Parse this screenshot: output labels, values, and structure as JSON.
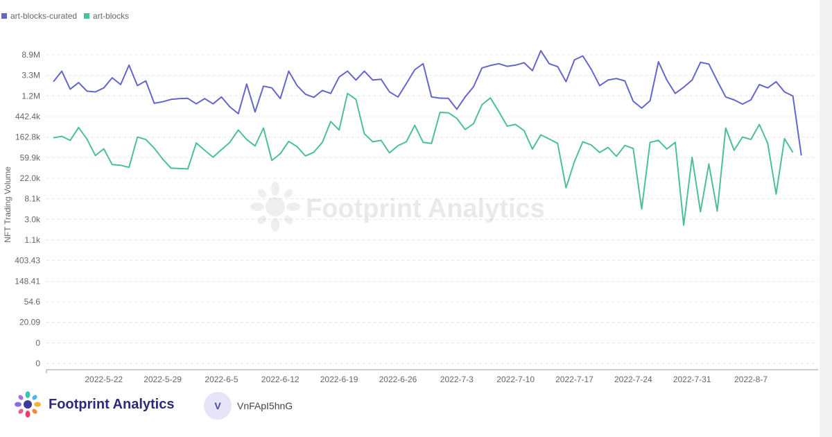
{
  "brand": {
    "name": "Footprint Analytics",
    "watermark": "Footprint Analytics"
  },
  "user": {
    "initial": "V",
    "name": "VnFApI5hnG"
  },
  "colors": {
    "curated": "#6366c9",
    "artblocks": "#4cbf96",
    "grid": "#e5e5e5",
    "axis": "#999999",
    "text": "#666666"
  },
  "chart_data": {
    "type": "line",
    "title": "",
    "xlabel": "",
    "ylabel": "NFT Trading Volume",
    "y_scale": "log",
    "y_ticks": [
      "0",
      "0",
      "20.09",
      "54.6",
      "148.41",
      "403.43",
      "1.1k",
      "3.0k",
      "8.1k",
      "22.0k",
      "59.9k",
      "162.8k",
      "442.4k",
      "1.2M",
      "3.3M",
      "8.9M"
    ],
    "y_tick_values": [
      1,
      2.72,
      20.09,
      54.6,
      148.41,
      403.43,
      1097,
      2981,
      8103,
      22026,
      59874,
      162755,
      442413,
      1202604,
      3269017,
      8886110
    ],
    "x_tick_labels": [
      "2022-5-22",
      "2022-5-29",
      "2022-6-5",
      "2022-6-12",
      "2022-6-19",
      "2022-6-26",
      "2022-7-3",
      "2022-7-10",
      "2022-7-17",
      "2022-7-24",
      "2022-7-31",
      "2022-8-7"
    ],
    "x_range": [
      "2022-5-16",
      "2022-8-15"
    ],
    "legend": "top-left",
    "series": [
      {
        "name": "art-blocks-curated",
        "color": "#6366c9",
        "x": [
          "2022-5-16",
          "2022-5-17",
          "2022-5-18",
          "2022-5-19",
          "2022-5-20",
          "2022-5-21",
          "2022-5-22",
          "2022-5-23",
          "2022-5-24",
          "2022-5-25",
          "2022-5-26",
          "2022-5-27",
          "2022-5-28",
          "2022-5-29",
          "2022-5-30",
          "2022-5-31",
          "2022-6-1",
          "2022-6-2",
          "2022-6-3",
          "2022-6-4",
          "2022-6-5",
          "2022-6-6",
          "2022-6-7",
          "2022-6-8",
          "2022-6-9",
          "2022-6-10",
          "2022-6-11",
          "2022-6-12",
          "2022-6-13",
          "2022-6-14",
          "2022-6-15",
          "2022-6-16",
          "2022-6-17",
          "2022-6-18",
          "2022-6-19",
          "2022-6-20",
          "2022-6-21",
          "2022-6-22",
          "2022-6-23",
          "2022-6-24",
          "2022-6-25",
          "2022-6-26",
          "2022-6-27",
          "2022-6-28",
          "2022-6-29",
          "2022-6-30",
          "2022-7-1",
          "2022-7-2",
          "2022-7-3",
          "2022-7-4",
          "2022-7-5",
          "2022-7-6",
          "2022-7-7",
          "2022-7-8",
          "2022-7-9",
          "2022-7-10",
          "2022-7-11",
          "2022-7-12",
          "2022-7-13",
          "2022-7-14",
          "2022-7-15",
          "2022-7-16",
          "2022-7-17",
          "2022-7-18",
          "2022-7-19",
          "2022-7-20",
          "2022-7-21",
          "2022-7-22",
          "2022-7-23",
          "2022-7-24",
          "2022-7-25",
          "2022-7-26",
          "2022-7-27",
          "2022-7-28",
          "2022-7-29",
          "2022-7-30",
          "2022-7-31",
          "2022-8-1",
          "2022-8-2",
          "2022-8-3",
          "2022-8-4",
          "2022-8-5",
          "2022-8-6",
          "2022-8-7",
          "2022-8-8",
          "2022-8-9",
          "2022-8-10",
          "2022-8-11",
          "2022-8-12",
          "2022-8-13"
        ],
        "values": [
          2200000,
          3800000,
          1500000,
          2100000,
          1350000,
          1300000,
          1600000,
          2700000,
          1900000,
          5200000,
          1800000,
          2300000,
          720000,
          780000,
          880000,
          920000,
          930000,
          700000,
          920000,
          700000,
          1000000,
          600000,
          420000,
          1950000,
          460000,
          1750000,
          1600000,
          920000,
          3800000,
          1800000,
          1150000,
          980000,
          1400000,
          1200000,
          2800000,
          3800000,
          2400000,
          3800000,
          2400000,
          2500000,
          1300000,
          1000000,
          2000000,
          4100000,
          5600000,
          1000000,
          940000,
          930000,
          530000,
          1000000,
          1700000,
          4500000,
          5100000,
          5600000,
          4900000,
          5200000,
          5900000,
          3900000,
          11000000,
          5600000,
          4800000,
          2200000,
          6800000,
          8400000,
          4200000,
          1800000,
          2400000,
          2600000,
          2300000,
          800000,
          560000,
          820000,
          6200000,
          2400000,
          1200000,
          1650000,
          2400000,
          6000000,
          5500000,
          2300000,
          1000000,
          860000,
          690000,
          860000,
          1900000,
          1600000,
          2200000,
          1300000,
          1050000,
          48000
        ]
      },
      {
        "name": "art-blocks",
        "color": "#4cbf96",
        "x": [
          "2022-5-16",
          "2022-5-17",
          "2022-5-18",
          "2022-5-19",
          "2022-5-20",
          "2022-5-21",
          "2022-5-22",
          "2022-5-23",
          "2022-5-24",
          "2022-5-25",
          "2022-5-26",
          "2022-5-27",
          "2022-5-28",
          "2022-5-29",
          "2022-5-30",
          "2022-5-31",
          "2022-6-1",
          "2022-6-2",
          "2022-6-3",
          "2022-6-4",
          "2022-6-5",
          "2022-6-6",
          "2022-6-7",
          "2022-6-8",
          "2022-6-9",
          "2022-6-10",
          "2022-6-11",
          "2022-6-12",
          "2022-6-13",
          "2022-6-14",
          "2022-6-15",
          "2022-6-16",
          "2022-6-17",
          "2022-6-18",
          "2022-6-19",
          "2022-6-20",
          "2022-6-21",
          "2022-6-22",
          "2022-6-23",
          "2022-6-24",
          "2022-6-25",
          "2022-6-26",
          "2022-6-27",
          "2022-6-28",
          "2022-6-29",
          "2022-6-30",
          "2022-7-1",
          "2022-7-2",
          "2022-7-3",
          "2022-7-4",
          "2022-7-5",
          "2022-7-6",
          "2022-7-7",
          "2022-7-8",
          "2022-7-9",
          "2022-7-10",
          "2022-7-11",
          "2022-7-12",
          "2022-7-13",
          "2022-7-14",
          "2022-7-15",
          "2022-7-16",
          "2022-7-17",
          "2022-7-18",
          "2022-7-19",
          "2022-7-20",
          "2022-7-21",
          "2022-7-22",
          "2022-7-23",
          "2022-7-24",
          "2022-7-25",
          "2022-7-26",
          "2022-7-27",
          "2022-7-28",
          "2022-7-29",
          "2022-7-30",
          "2022-7-31",
          "2022-8-1",
          "2022-8-2",
          "2022-8-3",
          "2022-8-4",
          "2022-8-5",
          "2022-8-6",
          "2022-8-7",
          "2022-8-8",
          "2022-8-9",
          "2022-8-10",
          "2022-8-11",
          "2022-8-12"
        ],
        "values": [
          120000,
          130000,
          105000,
          205000,
          112000,
          48000,
          68000,
          30000,
          29000,
          26000,
          125000,
          110000,
          70000,
          40000,
          25000,
          24500,
          24000,
          92000,
          63000,
          44000,
          65000,
          95000,
          180000,
          110000,
          79000,
          200000,
          37000,
          53000,
          100000,
          76000,
          47000,
          57000,
          95000,
          280000,
          180000,
          1200000,
          880000,
          148000,
          98000,
          105000,
          55000,
          80000,
          98000,
          230000,
          95000,
          90000,
          450000,
          440000,
          330000,
          185000,
          250000,
          670000,
          950000,
          470000,
          220000,
          240000,
          175000,
          67000,
          140000,
          113000,
          90000,
          9000,
          35000,
          98000,
          83000,
          56000,
          73000,
          46000,
          81000,
          69000,
          3000,
          95000,
          105000,
          67000,
          95000,
          1300,
          44000,
          2600,
          31000,
          2700,
          200000,
          63000,
          125000,
          110000,
          240000,
          90000,
          6500,
          115000,
          56000
        ]
      }
    ]
  }
}
